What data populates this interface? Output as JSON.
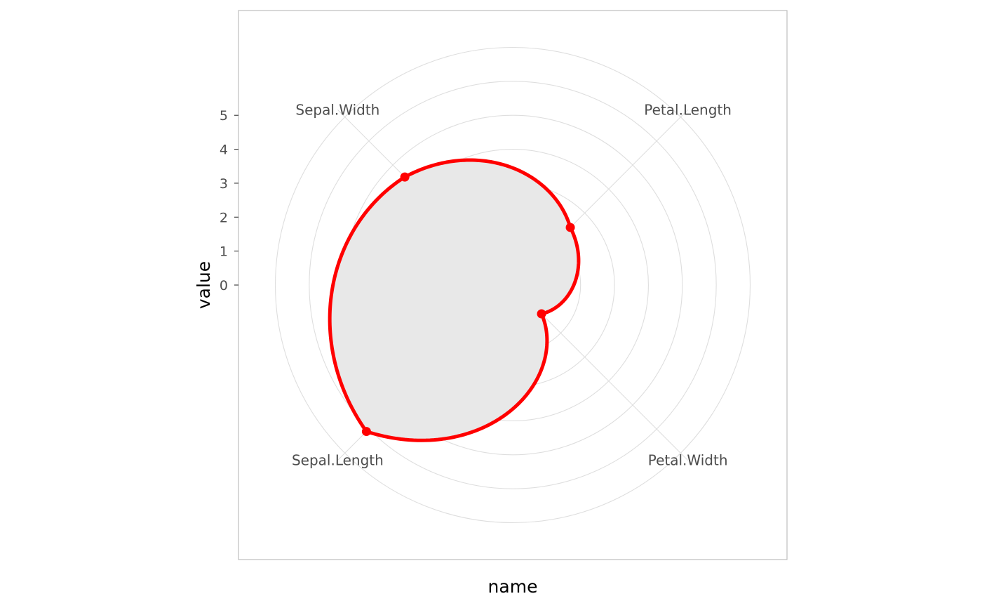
{
  "chart_data": {
    "type": "radar",
    "coord": "polar",
    "categories": [
      "Sepal.Length",
      "Sepal.Width",
      "Petal.Length",
      "Petal.Width"
    ],
    "series": [
      {
        "values": [
          5.1,
          3.5,
          1.4,
          0.2
        ]
      }
    ],
    "xlabel": "name",
    "ylabel": "value",
    "yticks": [
      0,
      1,
      2,
      3,
      4,
      5
    ],
    "ylim": [
      -1,
      6.3
    ],
    "grid": true,
    "line_color": "#ff0000",
    "fill_color": "#e8e8e8",
    "grid_color": "#dedede",
    "panel_border_color": "#bdbdbd"
  }
}
